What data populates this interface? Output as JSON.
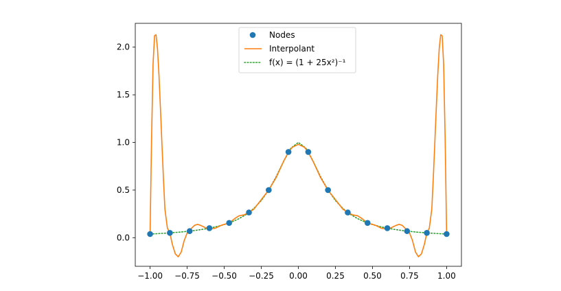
{
  "chart_data": {
    "type": "line",
    "title": "",
    "xlabel": "",
    "ylabel": "",
    "xlim": [
      -1.1,
      1.1
    ],
    "ylim": [
      -0.3,
      2.25
    ],
    "grid": false,
    "legend_position": "top-center",
    "x_ticks": [
      -1.0,
      -0.75,
      -0.5,
      -0.25,
      0.0,
      0.25,
      0.5,
      0.75,
      1.0
    ],
    "x_tick_labels": [
      "−1.00",
      "−0.75",
      "−0.50",
      "−0.25",
      "0.00",
      "0.25",
      "0.50",
      "0.75",
      "1.00"
    ],
    "y_ticks": [
      0.0,
      0.5,
      1.0,
      1.5,
      2.0
    ],
    "y_tick_labels": [
      "0.0",
      "0.5",
      "1.0",
      "1.5",
      "2.0"
    ],
    "series": [
      {
        "name": "Nodes",
        "kind": "scatter",
        "color": "#1f77b4",
        "x": [
          -1.0,
          -0.8667,
          -0.7333,
          -0.6,
          -0.4667,
          -0.3333,
          -0.2,
          -0.0667,
          0.0667,
          0.2,
          0.3333,
          0.4667,
          0.6,
          0.7333,
          0.8667,
          1.0
        ],
        "y": [
          0.0385,
          0.0506,
          0.0693,
          0.1,
          0.1552,
          0.2647,
          0.5,
          0.9,
          0.9,
          0.5,
          0.2647,
          0.1552,
          0.1,
          0.0693,
          0.0506,
          0.0385
        ]
      },
      {
        "name": "Interpolant",
        "kind": "line",
        "color": "#ff7f0e",
        "x": [
          -1.0,
          -0.99,
          -0.98,
          -0.97,
          -0.96,
          -0.95,
          -0.94,
          -0.93,
          -0.92,
          -0.91,
          -0.9,
          -0.8833,
          -0.8667,
          -0.85,
          -0.83,
          -0.81,
          -0.79,
          -0.77,
          -0.75,
          -0.7333,
          -0.72,
          -0.7,
          -0.68,
          -0.66,
          -0.64,
          -0.62,
          -0.6,
          -0.58,
          -0.56,
          -0.54,
          -0.52,
          -0.5,
          -0.4667,
          -0.43,
          -0.4,
          -0.3667,
          -0.3333,
          -0.3,
          -0.27,
          -0.25,
          -0.2,
          -0.15,
          -0.1,
          -0.0667,
          -0.04,
          0.0,
          0.04,
          0.0667,
          0.1,
          0.15,
          0.2,
          0.25,
          0.27,
          0.3,
          0.3333,
          0.3667,
          0.4,
          0.43,
          0.4667,
          0.5,
          0.52,
          0.54,
          0.56,
          0.58,
          0.6,
          0.62,
          0.64,
          0.66,
          0.68,
          0.7,
          0.72,
          0.7333,
          0.75,
          0.77,
          0.79,
          0.81,
          0.83,
          0.85,
          0.8667,
          0.8833,
          0.9,
          0.91,
          0.92,
          0.93,
          0.94,
          0.95,
          0.96,
          0.97,
          0.98,
          0.99,
          1.0
        ],
        "y": [
          0.04,
          1.05,
          1.82,
          2.12,
          2.13,
          1.98,
          1.7,
          1.35,
          0.98,
          0.62,
          0.3,
          0.1,
          0.05,
          -0.07,
          -0.17,
          -0.2,
          -0.15,
          -0.03,
          0.05,
          0.07,
          0.1,
          0.13,
          0.14,
          0.13,
          0.115,
          0.1,
          0.1,
          0.095,
          0.1,
          0.115,
          0.13,
          0.14,
          0.155,
          0.2,
          0.23,
          0.24,
          0.265,
          0.3,
          0.36,
          0.4,
          0.5,
          0.63,
          0.8,
          0.9,
          0.95,
          0.98,
          0.95,
          0.9,
          0.8,
          0.63,
          0.5,
          0.4,
          0.36,
          0.3,
          0.265,
          0.24,
          0.23,
          0.2,
          0.155,
          0.14,
          0.13,
          0.115,
          0.1,
          0.095,
          0.1,
          0.1,
          0.115,
          0.13,
          0.14,
          0.13,
          0.1,
          0.07,
          0.05,
          -0.03,
          -0.15,
          -0.2,
          -0.17,
          -0.07,
          0.05,
          0.1,
          0.3,
          0.62,
          0.98,
          1.35,
          1.7,
          1.98,
          2.13,
          2.12,
          1.82,
          1.05,
          0.04
        ]
      },
      {
        "name": "f(x) = (1 + 25x²)⁻¹",
        "kind": "line",
        "style": "dotted",
        "color": "#2ca02c",
        "x": [
          -1.0,
          -0.95,
          -0.9,
          -0.85,
          -0.8,
          -0.75,
          -0.7,
          -0.65,
          -0.6,
          -0.55,
          -0.5,
          -0.45,
          -0.4,
          -0.35,
          -0.3,
          -0.25,
          -0.2,
          -0.15,
          -0.1,
          -0.05,
          0.0,
          0.05,
          0.1,
          0.15,
          0.2,
          0.25,
          0.3,
          0.35,
          0.4,
          0.45,
          0.5,
          0.55,
          0.6,
          0.65,
          0.7,
          0.75,
          0.8,
          0.85,
          0.9,
          0.95,
          1.0
        ],
        "y": [
          0.0385,
          0.0424,
          0.0471,
          0.0525,
          0.0588,
          0.0664,
          0.0755,
          0.0865,
          0.1,
          0.1168,
          0.1379,
          0.165,
          0.2,
          0.2462,
          0.3077,
          0.3902,
          0.5,
          0.64,
          0.8,
          0.9412,
          1.0,
          0.9412,
          0.8,
          0.64,
          0.5,
          0.3902,
          0.3077,
          0.2462,
          0.2,
          0.165,
          0.1379,
          0.1168,
          0.1,
          0.0865,
          0.0755,
          0.0664,
          0.0588,
          0.0525,
          0.0471,
          0.0424,
          0.0385
        ]
      }
    ]
  }
}
